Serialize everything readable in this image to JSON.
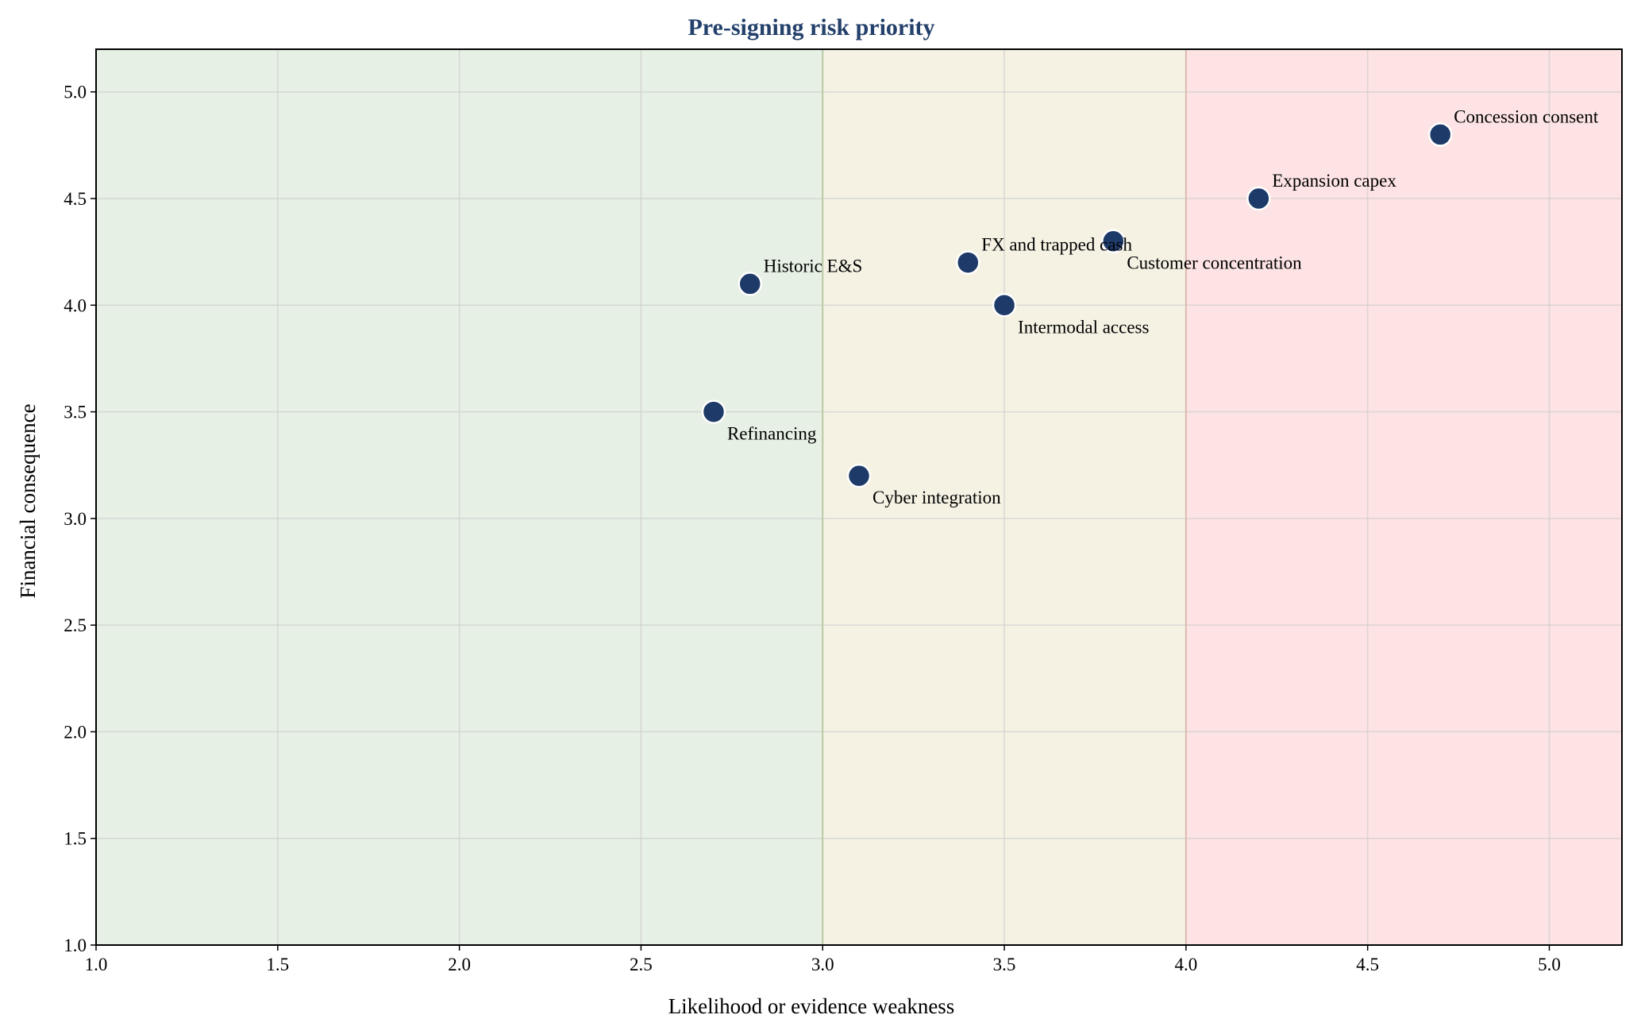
{
  "chart_data": {
    "type": "scatter",
    "title": "Pre-signing risk priority",
    "xlabel": "Likelihood or evidence weakness",
    "ylabel": "Financial consequence",
    "xlim": [
      1.0,
      5.2
    ],
    "ylim": [
      1.0,
      5.2
    ],
    "x_ticks": [
      "1.0",
      "1.5",
      "2.0",
      "2.5",
      "3.0",
      "3.5",
      "4.0",
      "4.5",
      "5.0"
    ],
    "y_ticks": [
      "1.0",
      "1.5",
      "2.0",
      "2.5",
      "3.0",
      "3.5",
      "4.0",
      "4.5",
      "5.0"
    ],
    "grid": true,
    "zones": [
      {
        "x_from": 1.0,
        "x_to": 3.0,
        "color": "#e6f0e4"
      },
      {
        "x_from": 3.0,
        "x_to": 4.0,
        "color": "#f5f2e4"
      },
      {
        "x_from": 4.0,
        "x_to": 5.2,
        "color": "#fde3e3"
      }
    ],
    "zone_boundaries": [
      3.0,
      4.0
    ],
    "points": [
      {
        "label": "Concession consent",
        "x": 4.7,
        "y": 4.8,
        "label_pos": "above"
      },
      {
        "label": "Expansion capex",
        "x": 4.2,
        "y": 4.5,
        "label_pos": "above"
      },
      {
        "label": "FX and trapped cash",
        "x": 3.4,
        "y": 4.2,
        "label_pos": "above"
      },
      {
        "label": "Customer concentration",
        "x": 3.8,
        "y": 4.3,
        "label_pos": "below"
      },
      {
        "label": "Historic E&S",
        "x": 2.8,
        "y": 4.1,
        "label_pos": "above"
      },
      {
        "label": "Intermodal access",
        "x": 3.5,
        "y": 4.0,
        "label_pos": "below"
      },
      {
        "label": "Refinancing",
        "x": 2.7,
        "y": 3.5,
        "label_pos": "below"
      },
      {
        "label": "Cyber integration",
        "x": 3.1,
        "y": 3.2,
        "label_pos": "below"
      }
    ],
    "colors": {
      "title": "#23406b",
      "marker": "#1e3a68",
      "marker_edge": "#ffffff",
      "grid": "#c8c8c8",
      "boundary": "#b9c9a5",
      "boundary_risk": "#dcb8b0",
      "axis": "#000000"
    }
  }
}
